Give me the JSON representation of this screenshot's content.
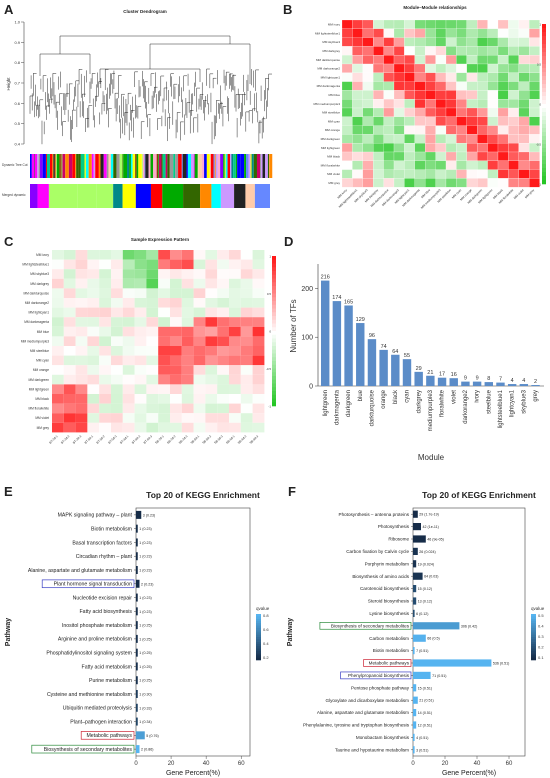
{
  "panels": {
    "A": {
      "letter": "A",
      "title": "Cluster Dendrogram",
      "ylabel": "Height",
      "yticks": [
        "1.0",
        "0.9",
        "0.8",
        "0.7",
        "0.6",
        "0.5",
        "0.4"
      ],
      "row1": "Dynamic Tree Cut",
      "row2": "Merged dynamic"
    },
    "B": {
      "letter": "B",
      "title": "Module–Module relationships"
    },
    "C": {
      "letter": "C",
      "title": "Sample Expression Pattern"
    },
    "D": {
      "letter": "D"
    },
    "E": {
      "letter": "E"
    },
    "F": {
      "letter": "F"
    }
  },
  "modules": [
    "MM ivory",
    "MM lightsteelblue1",
    "MM skyblue3",
    "MM darkgrey",
    "MM darkturquoise",
    "MM darkorange2",
    "MM lightcyan1",
    "MM darkmagenta",
    "MM blue",
    "MM mediumpurple3",
    "MM steelblue",
    "MM cyan",
    "MM orange",
    "MM darkgreen",
    "MM lightgreen",
    "MM black",
    "MM floralwhite",
    "MM violet",
    "MM grey"
  ],
  "samples": [
    "BT-2d-1",
    "BT-2d-2",
    "BT-2d-3",
    "BT-5d-1",
    "BT-5d-2",
    "BT-5d-3",
    "BT-8d-1",
    "BT-8d-2",
    "BT-8d-3",
    "SB-2d-1",
    "SB-2d-2",
    "SB-2d-3",
    "SB-5d-1",
    "SB-5d-2",
    "SB-5d-3",
    "SB-8d-1",
    "SB-8d-2",
    "SB-8d-3"
  ],
  "colorbar_ticks": [
    "1",
    "0.5",
    "0",
    "-0.5",
    "-1"
  ],
  "chart_data": [
    {
      "type": "bar",
      "panel": "D",
      "ylabel": "Number of TFs",
      "xlabel": "Module",
      "ylim": [
        0,
        250
      ],
      "yticks": [
        "0",
        "100",
        "200"
      ],
      "color": "#5b8cc8",
      "categories": [
        "lightgreen",
        "darkmagenta",
        "darkgreen",
        "blue",
        "darkturquoise",
        "orange",
        "black",
        "cyan",
        "darkgrey",
        "mediumpurple3",
        "floralwhite",
        "violet",
        "darkorange2",
        "ivory",
        "steelblue",
        "lightsteelblue1",
        "lightcyan1",
        "skyblue3",
        "grey"
      ],
      "values": [
        216,
        174,
        165,
        129,
        96,
        74,
        64,
        55,
        29,
        21,
        17,
        16,
        9,
        9,
        8,
        7,
        4,
        4,
        2
      ]
    },
    {
      "type": "bar",
      "panel": "E",
      "orientation": "horizontal",
      "title": "Top 20 of KEGG Enrichment",
      "ylabel": "Pathway",
      "xlabel": "Gene Percent(%)",
      "xlim": [
        0,
        65
      ],
      "xticks": [
        "0",
        "20",
        "40",
        "60"
      ],
      "legend_title": "qvalue",
      "legend_ticks": [
        "0.8",
        "0.6",
        "0.4",
        "0.2"
      ],
      "categories": [
        "MAPK signaling pathway – plant",
        "Biotin metabolism",
        "Basal transcription factors",
        "Circadian rhythm – plant",
        "Alanine, aspartate and glutamate metabolism",
        "Plant hormone signal transduction",
        "Nucleotide excision repair",
        "Fatty acid biosynthesis",
        "Inositol phosphate metabolism",
        "Arginine and proline metabolism",
        "Phosphatidylinositol signaling system",
        "Fatty acid metabolism",
        "Purine metabolism",
        "Cysteine and methionine metabolism",
        "Ubiquitin mediated proteolysis",
        "Plant–pathogen interaction",
        "Metabolic pathways",
        "Biosynthesis of secondary metabolites"
      ],
      "values": [
        3,
        1,
        1,
        1,
        1,
        2,
        1,
        1,
        1,
        1,
        1,
        1,
        1,
        1,
        1,
        1,
        5,
        2
      ],
      "labels": [
        "3 (0.23)",
        "1 (0.23)",
        "1 (0.23)",
        "1 (0.23)",
        "1 (0.23)",
        "2 (0.23)",
        "1 (0.23)",
        "1 (0.23)",
        "1 (0.25)",
        "1 (0.25)",
        "1 (0.25)",
        "1 (0.25)",
        "1 (0.25)",
        "1 (0.30)",
        "1 (0.33)",
        "1 (0.34)",
        "5 (0.76)",
        "2 (0.86)"
      ],
      "qvalues": [
        0.23,
        0.23,
        0.23,
        0.23,
        0.23,
        0.23,
        0.23,
        0.23,
        0.25,
        0.25,
        0.25,
        0.25,
        0.25,
        0.3,
        0.33,
        0.34,
        0.76,
        0.86
      ],
      "highlight": {
        "Plant hormone signal transduction": "#3a3fc4",
        "Metabolic pathways": "#cc2233",
        "Biosynthesis of secondary metabolites": "#2a8a3a"
      }
    },
    {
      "type": "bar",
      "panel": "F",
      "orientation": "horizontal",
      "title": "Top 20 of KEGG Enrichment",
      "ylabel": "Pathway",
      "xlabel": "Gene Percent(%)",
      "xlim": [
        0,
        70
      ],
      "xticks": [
        "0",
        "20",
        "40",
        "60"
      ],
      "legend_title": "qvalue",
      "legend_ticks": [
        "0.5",
        "0.4",
        "0.3",
        "0.2",
        "0.1"
      ],
      "categories": [
        "Photosynthesis – antenna proteins",
        "Photosynthesis",
        "Ribosome",
        "Carbon fixation by Calvin cycle",
        "Porphyrin metabolism",
        "Biosynthesis of amino acids",
        "Carotenoid biosynthesis",
        "Steroid biosynthesis",
        "Lysine biosynthesis",
        "Biosynthesis of secondary metabolites",
        "Carbon metabolism",
        "Biotin metabolism",
        "Metabolic pathways",
        "Phenylpropanoid biosynthesis",
        "Pentose phosphate pathway",
        "Glyoxylate and dicarboxylate metabolism",
        "Alanine, aspartate and glutamate metabolism",
        "Phenylalanine, tyrosine and tryptophan biosynthesis",
        "Monobactam biosynthesis",
        "Taurine and hypotaurine metabolism"
      ],
      "values": [
        3,
        5,
        8,
        3,
        2,
        6,
        2,
        2,
        1,
        29,
        8,
        1,
        49,
        11,
        2,
        3,
        2,
        2,
        1,
        1
      ],
      "labels": [
        "29 (1.7e-19)",
        "42 (1e-11)",
        "46 (9e-05)",
        "26 (0.024)",
        "19 (0.024)",
        "64 (0.03)",
        "15 (0.12)",
        "13 (0.12)",
        "6 (0.12)",
        "306 (0.42)",
        "66 (0.5)",
        "7 (0.51)",
        "536 (0.51)",
        "71 (0.51)",
        "15 (0.51)",
        "21 (0.51)",
        "14 (0.51)",
        "12 (0.51)",
        "4 (0.51)",
        "3 (0.51)"
      ],
      "qvalues": [
        0.0,
        0.0,
        0.0,
        0.024,
        0.024,
        0.03,
        0.12,
        0.12,
        0.12,
        0.42,
        0.5,
        0.51,
        0.51,
        0.51,
        0.51,
        0.51,
        0.51,
        0.51,
        0.51,
        0.51
      ],
      "highlight": {
        "Biosynthesis of secondary metabolites": "#2a8a3a",
        "Metabolic pathways": "#cc2233",
        "Phenylpropanoid biosynthesis": "#3a3fc4"
      }
    }
  ]
}
